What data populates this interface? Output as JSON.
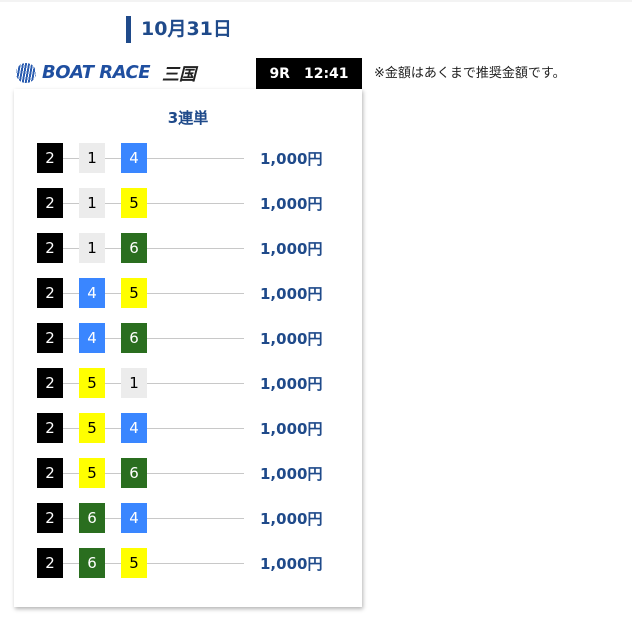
{
  "date": "10月31日",
  "logo": {
    "text": "BOAT RACE",
    "venue": "三国"
  },
  "race": {
    "number": "9R",
    "time": "12:41"
  },
  "note": "※金額はあくまで推奨金額です。",
  "card": {
    "title": "3連単",
    "bets": [
      {
        "combo": [
          "2",
          "1",
          "4"
        ],
        "amount": "1,000円"
      },
      {
        "combo": [
          "2",
          "1",
          "5"
        ],
        "amount": "1,000円"
      },
      {
        "combo": [
          "2",
          "1",
          "6"
        ],
        "amount": "1,000円"
      },
      {
        "combo": [
          "2",
          "4",
          "5"
        ],
        "amount": "1,000円"
      },
      {
        "combo": [
          "2",
          "4",
          "6"
        ],
        "amount": "1,000円"
      },
      {
        "combo": [
          "2",
          "5",
          "1"
        ],
        "amount": "1,000円"
      },
      {
        "combo": [
          "2",
          "5",
          "4"
        ],
        "amount": "1,000円"
      },
      {
        "combo": [
          "2",
          "5",
          "6"
        ],
        "amount": "1,000円"
      },
      {
        "combo": [
          "2",
          "6",
          "4"
        ],
        "amount": "1,000円"
      },
      {
        "combo": [
          "2",
          "6",
          "5"
        ],
        "amount": "1,000円"
      }
    ]
  },
  "boat_colors": {
    "1": {
      "bg": "#ececec",
      "fg": "#000000"
    },
    "2": {
      "bg": "#000000",
      "fg": "#ffffff"
    },
    "4": {
      "bg": "#3a86ff",
      "fg": "#ffffff"
    },
    "5": {
      "bg": "#ffff00",
      "fg": "#000000"
    },
    "6": {
      "bg": "#2a6e1f",
      "fg": "#ffffff"
    }
  },
  "accent": "#1f4a8a"
}
